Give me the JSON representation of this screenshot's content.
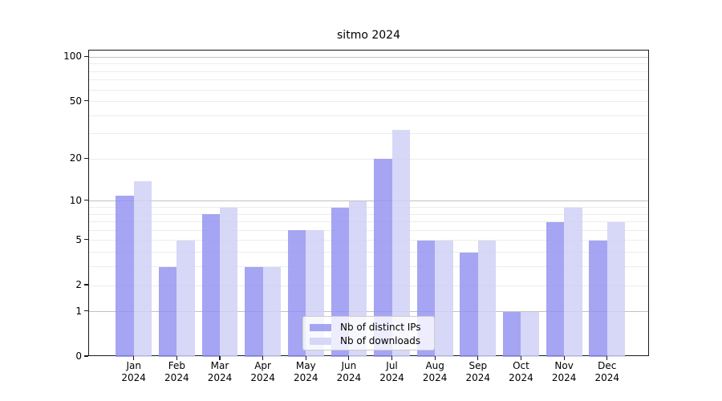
{
  "chart_data": {
    "type": "bar",
    "title": "sitmo 2024",
    "xlabel": "",
    "ylabel": "",
    "yscale": "log1p",
    "ylim": [
      0,
      111
    ],
    "grid": true,
    "legend_position": "lower center",
    "categories": [
      "Jan 2024",
      "Feb 2024",
      "Mar 2024",
      "Apr 2024",
      "May 2024",
      "Jun 2024",
      "Jul 2024",
      "Aug 2024",
      "Sep 2024",
      "Oct 2024",
      "Nov 2024",
      "Dec 2024"
    ],
    "series": [
      {
        "name": "Nb of distinct IPs",
        "color": "rgba(145,145,240,0.82)",
        "values": [
          11,
          3,
          8,
          3,
          6,
          9,
          20,
          5,
          4,
          1,
          7,
          5
        ]
      },
      {
        "name": "Nb of downloads",
        "color": "rgba(208,208,246,0.85)",
        "values": [
          14,
          5,
          9,
          3,
          6,
          10,
          32,
          5,
          5,
          1,
          9,
          7
        ]
      }
    ],
    "yticks": [
      100,
      50,
      20,
      10,
      5,
      2,
      1,
      0
    ],
    "grid_major": [
      1,
      10,
      100
    ],
    "grid_minor": [
      2,
      3,
      4,
      5,
      6,
      7,
      8,
      9,
      20,
      30,
      40,
      50,
      60,
      70,
      80,
      90
    ]
  },
  "colors": {
    "grid_major": "#c2c2c2",
    "grid_minor": "#ececec",
    "axis": "#1a1a1a",
    "background": "#ffffff"
  }
}
